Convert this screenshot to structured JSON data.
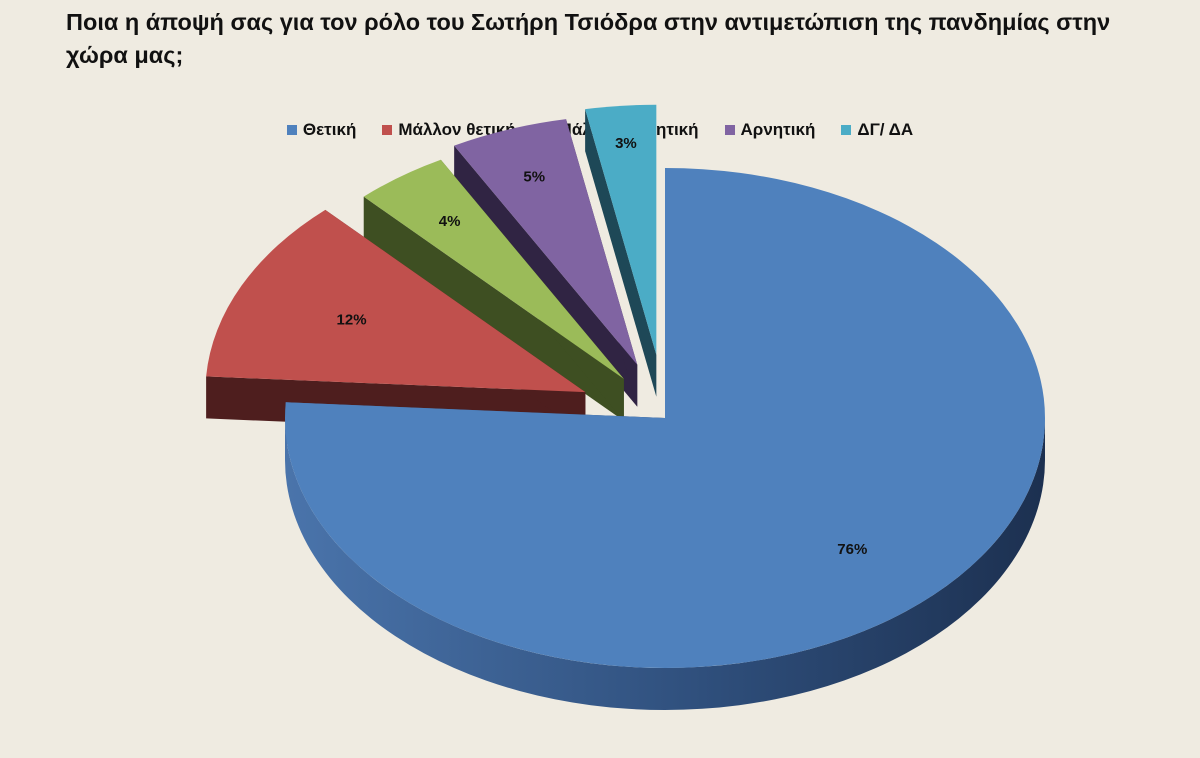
{
  "chart_data": {
    "type": "pie",
    "title": "Ποια η άποψή σας για τον ρόλο του  Σωτήρη Τσιόδρα στην αντιμετώπιση της πανδημίας στην χώρα μας;",
    "categories": [
      "Θετική",
      "Μάλλον θετική",
      "Μάλλον αρνητική",
      "Αρνητική",
      "ΔΓ/ ΔΑ"
    ],
    "values": [
      76,
      12,
      4,
      5,
      3
    ],
    "value_labels": [
      "76%",
      "12%",
      "4%",
      "5%",
      "3%"
    ],
    "colors": [
      "#4f81bd",
      "#c0504d",
      "#9bbb59",
      "#8064a2",
      "#4bacc6"
    ],
    "exploded": true,
    "three_d": true,
    "legend_position": "top"
  }
}
